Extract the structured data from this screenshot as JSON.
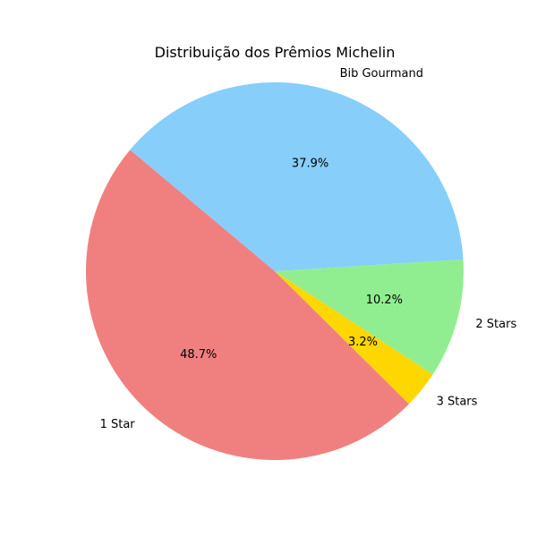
{
  "chart_data": {
    "type": "pie",
    "title": "Distribuição dos Prêmios Michelin",
    "labels": [
      "1 Star",
      "3 Stars",
      "2 Stars",
      "Bib Gourmand"
    ],
    "values": [
      48.7,
      3.2,
      10.2,
      37.9
    ],
    "percent_labels": [
      "48.7%",
      "3.2%",
      "10.2%",
      "37.9%"
    ],
    "colors": [
      "#f08080",
      "#ffd700",
      "#90ee90",
      "#87cefa"
    ],
    "start_angle_deg": 140,
    "direction": "counterclockwise",
    "legend": "none"
  }
}
